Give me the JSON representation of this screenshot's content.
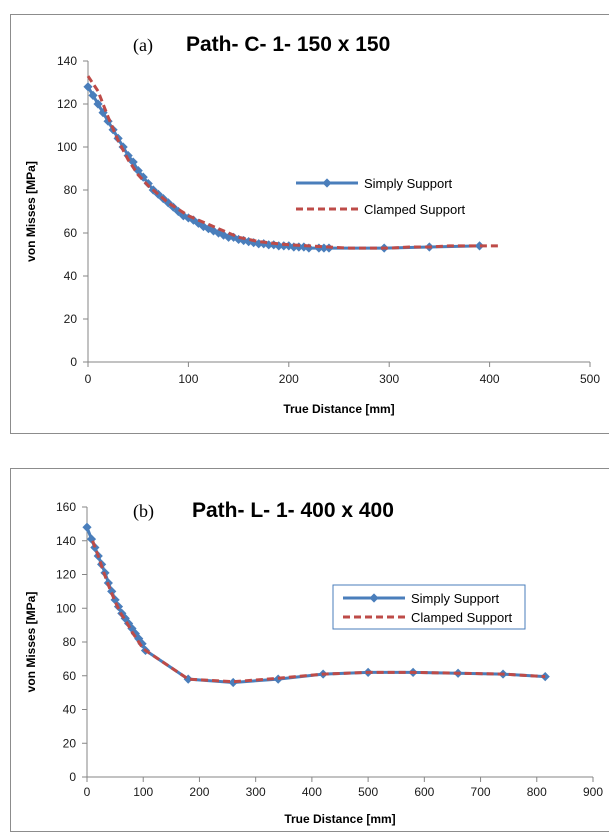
{
  "chart_data": [
    {
      "type": "line",
      "title_prefix": "(a)",
      "title": "Path- C- 1- 150 x 150",
      "xlabel": "True Distance [mm]",
      "ylabel": "von Misses [MPa]",
      "xlim": [
        0,
        500
      ],
      "ylim": [
        0,
        140
      ],
      "xticks": [
        0,
        100,
        200,
        300,
        400,
        500
      ],
      "yticks": [
        0,
        20,
        40,
        60,
        80,
        100,
        120,
        140
      ],
      "grid": false,
      "legend_position": "right-middle",
      "legend_border": false,
      "series": [
        {
          "name": "Simply Support",
          "color": "#4a7ebb",
          "style": "solid-diamond",
          "x": [
            0,
            5,
            10,
            15,
            20,
            25,
            30,
            35,
            40,
            45,
            50,
            55,
            60,
            65,
            70,
            75,
            80,
            85,
            90,
            95,
            100,
            105,
            110,
            115,
            120,
            125,
            130,
            135,
            140,
            145,
            150,
            155,
            160,
            165,
            170,
            175,
            180,
            185,
            190,
            195,
            200,
            205,
            210,
            215,
            220,
            230,
            235,
            240,
            295,
            340,
            390
          ],
          "y": [
            128,
            124,
            120,
            116,
            112,
            108,
            104,
            100,
            96,
            93,
            89,
            86,
            83,
            80,
            78,
            76,
            74,
            72,
            70,
            68,
            67,
            66,
            64.5,
            63,
            62,
            61,
            60,
            59,
            58,
            58,
            57,
            56.5,
            56,
            55.5,
            55,
            55,
            54.5,
            54.5,
            54,
            54,
            54,
            53.5,
            53.5,
            53.5,
            53,
            53,
            53,
            53,
            53,
            53.5,
            54
          ]
        },
        {
          "name": "Clamped Support",
          "color": "#be4b48",
          "style": "dashed",
          "x": [
            0,
            10,
            20,
            30,
            40,
            50,
            60,
            70,
            80,
            90,
            100,
            110,
            120,
            130,
            140,
            150,
            160,
            170,
            180,
            190,
            200,
            220,
            240,
            260,
            280,
            300,
            320,
            340,
            360,
            380,
            400,
            410
          ],
          "y": [
            133,
            126,
            114,
            103,
            94,
            87,
            82,
            78,
            74,
            71,
            68,
            66,
            64,
            62,
            60,
            58,
            57,
            56,
            55.5,
            55,
            54.5,
            54,
            53.5,
            53,
            53,
            53,
            53.5,
            53.5,
            54,
            54,
            54,
            54
          ]
        }
      ]
    },
    {
      "type": "line",
      "title_prefix": "(b)",
      "title": "Path- L- 1- 400 x 400",
      "xlabel": "True Distance [mm]",
      "ylabel": "von Misses [MPa]",
      "xlim": [
        0,
        900
      ],
      "ylim": [
        0,
        160
      ],
      "xticks": [
        0,
        100,
        200,
        300,
        400,
        500,
        600,
        700,
        800,
        900
      ],
      "yticks": [
        0,
        20,
        40,
        60,
        80,
        100,
        120,
        140,
        160
      ],
      "grid": false,
      "legend_position": "right-middle",
      "legend_border": true,
      "series": [
        {
          "name": "Simply Support",
          "color": "#4a7ebb",
          "style": "solid-diamond",
          "x": [
            0,
            8,
            14,
            20,
            26,
            32,
            38,
            44,
            50,
            56,
            62,
            68,
            74,
            80,
            86,
            92,
            98,
            104,
            180,
            260,
            340,
            420,
            500,
            580,
            660,
            740,
            815
          ],
          "y": [
            148,
            141,
            136,
            131,
            126,
            121,
            115,
            110,
            105,
            101,
            97,
            94,
            91,
            88,
            85,
            82,
            79,
            75,
            58,
            56,
            58,
            61,
            62,
            62,
            61.5,
            61,
            59.5
          ]
        },
        {
          "name": "Clamped Support",
          "color": "#be4b48",
          "style": "dashed",
          "x": [
            10,
            20,
            30,
            40,
            50,
            60,
            70,
            80,
            90,
            100,
            180,
            260,
            340,
            420,
            500,
            580,
            660,
            740,
            815
          ],
          "y": [
            140,
            131,
            121,
            112,
            104,
            97,
            92,
            86,
            81,
            76,
            58,
            56.5,
            58.5,
            61,
            62,
            62,
            61.5,
            61,
            59.5
          ]
        }
      ]
    }
  ]
}
